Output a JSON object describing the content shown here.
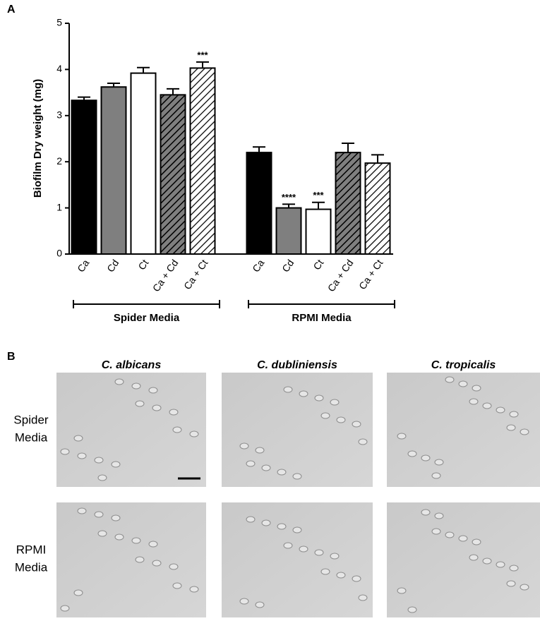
{
  "panel_labels": [
    "A",
    "B"
  ],
  "chart_data": {
    "type": "bar",
    "ylabel": "Biofilm Dry weight (mg)",
    "categories": [
      "Ca",
      "Cd",
      "Ct",
      "Ca + Cd",
      "Ca + Ct"
    ],
    "colors": [
      "#000000",
      "#7f7f7f",
      "#ffffff",
      "#7f7f7f",
      "#ffffff"
    ],
    "hatch": [
      false,
      false,
      false,
      true,
      true
    ],
    "ylim": [
      0,
      5
    ],
    "yticks": [
      0,
      1,
      2,
      3,
      4,
      5
    ],
    "series": [
      {
        "name": "Spider Media",
        "values": [
          3.33,
          3.62,
          3.92,
          3.45,
          4.03
        ],
        "errors": [
          0.07,
          0.08,
          0.12,
          0.13,
          0.13
        ],
        "annotations": [
          null,
          null,
          null,
          null,
          "***"
        ]
      },
      {
        "name": "RPMI Media",
        "values": [
          2.2,
          1.0,
          0.97,
          2.2,
          1.97
        ],
        "errors": [
          0.12,
          0.08,
          0.15,
          0.2,
          0.18
        ],
        "annotations": [
          null,
          "****",
          "***",
          null,
          null
        ]
      }
    ]
  },
  "micrographs": {
    "columns": [
      "C. albicans",
      "C. dubliniensis",
      "C. tropicalis"
    ],
    "rows": [
      [
        "Spider",
        "Media"
      ],
      [
        "RPMI",
        "Media"
      ]
    ]
  }
}
